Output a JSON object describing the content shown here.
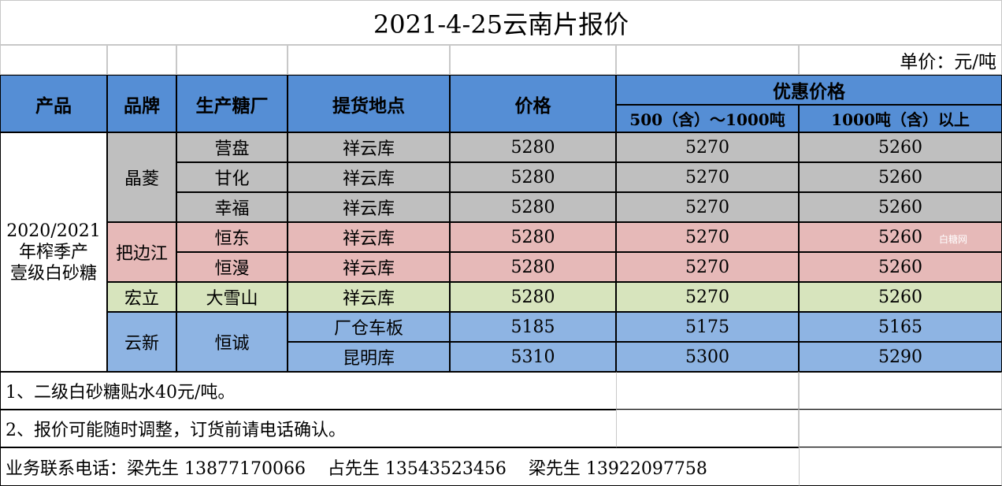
{
  "title": "2021-4-25云南片报价",
  "unit": "单价：元/吨",
  "headers": {
    "product": "产品",
    "brand": "品牌",
    "factory": "生产糖厂",
    "location": "提货地点",
    "price": "价格",
    "discount": "优惠价格",
    "tier1": "500（含）～1000吨",
    "tier2": "1000吨（含）以上"
  },
  "product_lines": [
    "2020/2021",
    "年榨季产",
    "壹级白砂糖"
  ],
  "brands": [
    "晶菱",
    "把边江",
    "宏立",
    "云新"
  ],
  "rows": [
    {
      "factory": "营盘",
      "location": "祥云库",
      "price": "5280",
      "p1": "5270",
      "p2": "5260"
    },
    {
      "factory": "甘化",
      "location": "祥云库",
      "price": "5280",
      "p1": "5270",
      "p2": "5260"
    },
    {
      "factory": "幸福",
      "location": "祥云库",
      "price": "5280",
      "p1": "5270",
      "p2": "5260"
    },
    {
      "factory": "恒东",
      "location": "祥云库",
      "price": "5280",
      "p1": "5270",
      "p2": "5260"
    },
    {
      "factory": "恒漫",
      "location": "祥云库",
      "price": "5280",
      "p1": "5270",
      "p2": "5260"
    },
    {
      "factory": "大雪山",
      "location": "祥云库",
      "price": "5280",
      "p1": "5270",
      "p2": "5260"
    },
    {
      "factory": "恒诚",
      "location": "厂仓车板",
      "price": "5185",
      "p1": "5175",
      "p2": "5165"
    },
    {
      "factory": "",
      "location": "昆明库",
      "price": "5310",
      "p1": "5300",
      "p2": "5290"
    }
  ],
  "notes": [
    "1、二级白砂糖贴水40元/吨。",
    "2、报价可能随时调整，订货前请电话确认。"
  ],
  "contact": "业务联系电话：梁先生 13877170066    占先生 13543523456    梁先生 13922097758",
  "watermark": "白糖网",
  "colors": {
    "header": "#558ed5",
    "gray": "#bfbfbf",
    "pink": "#e6b9b8",
    "green": "#d7e4bd",
    "blue": "#8eb4e3"
  }
}
